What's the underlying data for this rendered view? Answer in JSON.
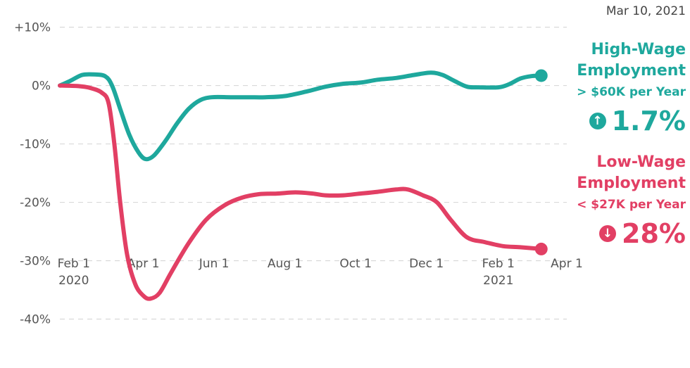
{
  "date": "Mar 10, 2021",
  "colors": {
    "high": "#1ea89d",
    "low": "#e23f64",
    "grid": "#d9d9d9",
    "tick": "#555555"
  },
  "high_wage": {
    "title_line1": "High-Wage",
    "title_line2": "Employment",
    "subtitle": "> $60K per Year",
    "change": "1.7%",
    "arrow": "↑",
    "icon": "arrow-up-circle-icon"
  },
  "low_wage": {
    "title_line1": "Low-Wage",
    "title_line2": "Employment",
    "subtitle": "< $27K per Year",
    "change": "28%",
    "arrow": "↓",
    "icon": "arrow-down-circle-icon"
  },
  "chart_data": {
    "type": "line",
    "xlabel": "",
    "ylabel": "",
    "grid": true,
    "legend": "right",
    "ylim": [
      -45,
      12
    ],
    "xlim": [
      "2020-01-20",
      "2021-04-01"
    ],
    "yticks": [
      {
        "value": 10,
        "label": "+10%"
      },
      {
        "value": 0,
        "label": "0%"
      },
      {
        "value": -10,
        "label": "-10%"
      },
      {
        "value": -20,
        "label": "-20%"
      },
      {
        "value": -30,
        "label": "-30%"
      },
      {
        "value": -40,
        "label": "-40%"
      }
    ],
    "xticks": [
      {
        "date": "2020-02-01",
        "label": "Feb 1",
        "label2": "2020"
      },
      {
        "date": "2020-04-01",
        "label": "Apr 1",
        "label2": ""
      },
      {
        "date": "2020-06-01",
        "label": "Jun 1",
        "label2": ""
      },
      {
        "date": "2020-08-01",
        "label": "Aug 1",
        "label2": ""
      },
      {
        "date": "2020-10-01",
        "label": "Oct 1",
        "label2": ""
      },
      {
        "date": "2020-12-01",
        "label": "Dec 1",
        "label2": ""
      },
      {
        "date": "2021-02-01",
        "label": "Feb 1",
        "label2": "2021"
      },
      {
        "date": "2021-04-01",
        "label": "Apr 1",
        "label2": ""
      }
    ],
    "series": [
      {
        "key": "high",
        "points": [
          [
            "2020-01-20",
            0
          ],
          [
            "2020-01-29",
            0.8
          ],
          [
            "2020-02-08",
            1.8
          ],
          [
            "2020-02-18",
            1.9
          ],
          [
            "2020-02-28",
            1.6
          ],
          [
            "2020-03-05",
            0
          ],
          [
            "2020-03-12",
            -4
          ],
          [
            "2020-03-20",
            -8.5
          ],
          [
            "2020-03-28",
            -11.5
          ],
          [
            "2020-04-03",
            -12.6
          ],
          [
            "2020-04-10",
            -12
          ],
          [
            "2020-04-20",
            -9.5
          ],
          [
            "2020-04-30",
            -6.5
          ],
          [
            "2020-05-10",
            -4
          ],
          [
            "2020-05-20",
            -2.5
          ],
          [
            "2020-05-30",
            -2
          ],
          [
            "2020-06-15",
            -2
          ],
          [
            "2020-07-01",
            -2
          ],
          [
            "2020-07-15",
            -2
          ],
          [
            "2020-08-01",
            -1.8
          ],
          [
            "2020-08-20",
            -1
          ],
          [
            "2020-09-05",
            -0.2
          ],
          [
            "2020-09-20",
            0.3
          ],
          [
            "2020-10-05",
            0.5
          ],
          [
            "2020-10-20",
            1
          ],
          [
            "2020-11-05",
            1.3
          ],
          [
            "2020-11-20",
            1.8
          ],
          [
            "2020-12-05",
            2.2
          ],
          [
            "2020-12-15",
            1.8
          ],
          [
            "2020-12-25",
            0.8
          ],
          [
            "2021-01-05",
            -0.2
          ],
          [
            "2021-01-15",
            -0.3
          ],
          [
            "2021-02-01",
            -0.3
          ],
          [
            "2021-02-10",
            0.2
          ],
          [
            "2021-02-20",
            1.2
          ],
          [
            "2021-03-01",
            1.6
          ],
          [
            "2021-03-10",
            1.7
          ]
        ]
      },
      {
        "key": "low",
        "points": [
          [
            "2020-01-20",
            0
          ],
          [
            "2020-02-05",
            -0.1
          ],
          [
            "2020-02-15",
            -0.4
          ],
          [
            "2020-02-25",
            -1.2
          ],
          [
            "2020-03-02",
            -3
          ],
          [
            "2020-03-07",
            -10
          ],
          [
            "2020-03-12",
            -20
          ],
          [
            "2020-03-18",
            -29
          ],
          [
            "2020-03-25",
            -34
          ],
          [
            "2020-04-01",
            -36
          ],
          [
            "2020-04-07",
            -36.5
          ],
          [
            "2020-04-15",
            -35.5
          ],
          [
            "2020-04-25",
            -32
          ],
          [
            "2020-05-10",
            -27
          ],
          [
            "2020-05-25",
            -23
          ],
          [
            "2020-06-10",
            -20.5
          ],
          [
            "2020-06-25",
            -19.2
          ],
          [
            "2020-07-10",
            -18.6
          ],
          [
            "2020-07-25",
            -18.5
          ],
          [
            "2020-08-10",
            -18.3
          ],
          [
            "2020-08-25",
            -18.5
          ],
          [
            "2020-09-05",
            -18.8
          ],
          [
            "2020-09-20",
            -18.8
          ],
          [
            "2020-10-05",
            -18.5
          ],
          [
            "2020-10-20",
            -18.2
          ],
          [
            "2020-11-05",
            -17.8
          ],
          [
            "2020-11-15",
            -17.8
          ],
          [
            "2020-11-28",
            -18.8
          ],
          [
            "2020-12-10",
            -20
          ],
          [
            "2020-12-22",
            -23
          ],
          [
            "2021-01-05",
            -26
          ],
          [
            "2021-01-20",
            -26.8
          ],
          [
            "2021-02-05",
            -27.5
          ],
          [
            "2021-02-20",
            -27.7
          ],
          [
            "2021-03-10",
            -28
          ]
        ]
      }
    ]
  }
}
